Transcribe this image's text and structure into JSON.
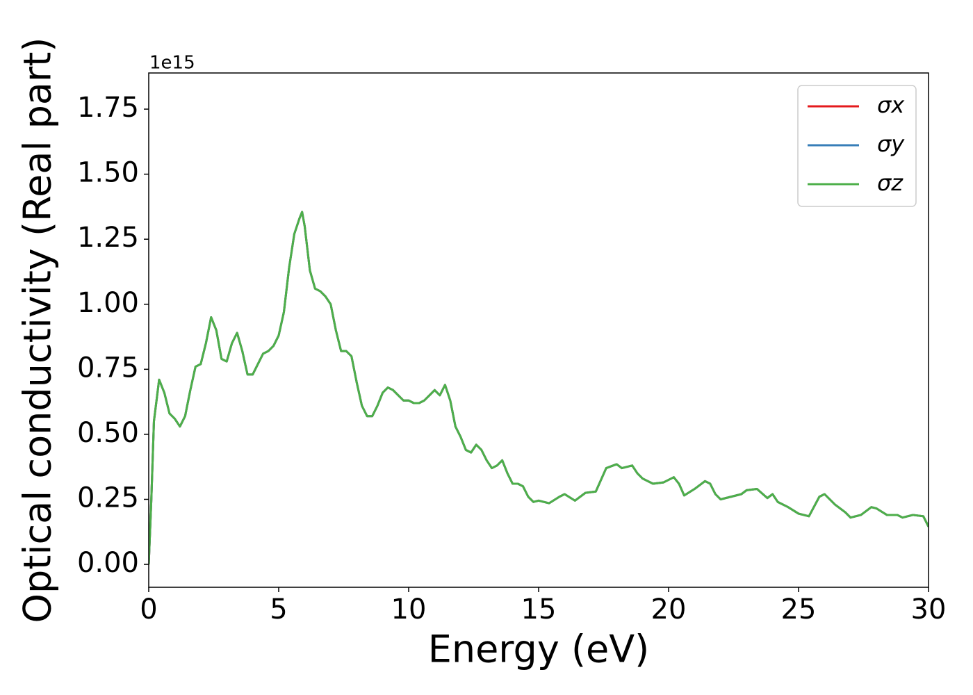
{
  "chart_data": {
    "type": "line",
    "xlabel": "Energy (eV)",
    "ylabel": "Optical conductivity (Real part)",
    "y_offset_text": "1e15",
    "x": [
      0,
      0.1,
      0.2,
      0.4,
      0.6,
      0.8,
      1.0,
      1.2,
      1.4,
      1.6,
      1.8,
      2.0,
      2.2,
      2.4,
      2.6,
      2.8,
      3.0,
      3.2,
      3.4,
      3.6,
      3.8,
      4.0,
      4.2,
      4.4,
      4.6,
      4.8,
      5.0,
      5.2,
      5.4,
      5.6,
      5.8,
      5.9,
      6.0,
      6.2,
      6.4,
      6.6,
      6.8,
      7.0,
      7.2,
      7.4,
      7.6,
      7.8,
      8.0,
      8.2,
      8.4,
      8.6,
      8.8,
      9.0,
      9.2,
      9.4,
      9.6,
      9.8,
      10.0,
      10.2,
      10.4,
      10.6,
      10.8,
      11.0,
      11.2,
      11.4,
      11.6,
      11.8,
      12.0,
      12.2,
      12.4,
      12.6,
      12.8,
      13.0,
      13.2,
      13.4,
      13.6,
      13.8,
      14.0,
      14.2,
      14.4,
      14.6,
      14.8,
      15.0,
      15.4,
      15.8,
      16.0,
      16.4,
      16.8,
      17.2,
      17.6,
      18.0,
      18.2,
      18.6,
      18.8,
      19.0,
      19.4,
      19.8,
      20.2,
      20.4,
      20.6,
      21.0,
      21.4,
      21.6,
      21.8,
      22.0,
      22.4,
      22.8,
      23.0,
      23.4,
      23.8,
      24.0,
      24.2,
      24.6,
      25.0,
      25.4,
      25.8,
      26.0,
      26.4,
      26.8,
      27.0,
      27.4,
      27.8,
      28.0,
      28.4,
      28.8,
      29.0,
      29.4,
      29.8,
      30.0
    ],
    "series": [
      {
        "name": "σx",
        "color": "#e41a1c",
        "values": [
          0,
          0.25,
          0.55,
          0.71,
          0.66,
          0.58,
          0.56,
          0.53,
          0.57,
          0.67,
          0.76,
          0.77,
          0.85,
          0.95,
          0.9,
          0.79,
          0.78,
          0.85,
          0.89,
          0.82,
          0.73,
          0.73,
          0.77,
          0.81,
          0.82,
          0.84,
          0.88,
          0.97,
          1.14,
          1.27,
          1.33,
          1.355,
          1.3,
          1.13,
          1.06,
          1.05,
          1.03,
          1.0,
          0.9,
          0.82,
          0.82,
          0.8,
          0.7,
          0.61,
          0.57,
          0.57,
          0.61,
          0.66,
          0.68,
          0.67,
          0.65,
          0.63,
          0.63,
          0.62,
          0.62,
          0.63,
          0.65,
          0.67,
          0.65,
          0.69,
          0.63,
          0.53,
          0.49,
          0.44,
          0.43,
          0.46,
          0.44,
          0.4,
          0.37,
          0.38,
          0.4,
          0.35,
          0.31,
          0.31,
          0.3,
          0.26,
          0.24,
          0.245,
          0.235,
          0.26,
          0.27,
          0.245,
          0.275,
          0.28,
          0.37,
          0.385,
          0.37,
          0.38,
          0.35,
          0.33,
          0.31,
          0.315,
          0.335,
          0.31,
          0.265,
          0.29,
          0.32,
          0.31,
          0.27,
          0.25,
          0.26,
          0.27,
          0.285,
          0.29,
          0.255,
          0.27,
          0.24,
          0.22,
          0.195,
          0.185,
          0.26,
          0.27,
          0.23,
          0.2,
          0.18,
          0.19,
          0.22,
          0.215,
          0.19,
          0.19,
          0.18,
          0.19,
          0.185,
          0.145
        ]
      },
      {
        "name": "σy",
        "color": "#377eb8",
        "values": [
          0,
          0.25,
          0.55,
          0.71,
          0.66,
          0.58,
          0.56,
          0.53,
          0.57,
          0.67,
          0.76,
          0.77,
          0.85,
          0.95,
          0.9,
          0.79,
          0.78,
          0.85,
          0.89,
          0.82,
          0.73,
          0.73,
          0.77,
          0.81,
          0.82,
          0.84,
          0.88,
          0.97,
          1.14,
          1.27,
          1.33,
          1.355,
          1.3,
          1.13,
          1.06,
          1.05,
          1.03,
          1.0,
          0.9,
          0.82,
          0.82,
          0.8,
          0.7,
          0.61,
          0.57,
          0.57,
          0.61,
          0.66,
          0.68,
          0.67,
          0.65,
          0.63,
          0.63,
          0.62,
          0.62,
          0.63,
          0.65,
          0.67,
          0.65,
          0.69,
          0.63,
          0.53,
          0.49,
          0.44,
          0.43,
          0.46,
          0.44,
          0.4,
          0.37,
          0.38,
          0.4,
          0.35,
          0.31,
          0.31,
          0.3,
          0.26,
          0.24,
          0.245,
          0.235,
          0.26,
          0.27,
          0.245,
          0.275,
          0.28,
          0.37,
          0.385,
          0.37,
          0.38,
          0.35,
          0.33,
          0.31,
          0.315,
          0.335,
          0.31,
          0.265,
          0.29,
          0.32,
          0.31,
          0.27,
          0.25,
          0.26,
          0.27,
          0.285,
          0.29,
          0.255,
          0.27,
          0.24,
          0.22,
          0.195,
          0.185,
          0.26,
          0.27,
          0.23,
          0.2,
          0.18,
          0.19,
          0.22,
          0.215,
          0.19,
          0.19,
          0.18,
          0.19,
          0.185,
          0.145
        ]
      },
      {
        "name": "σz",
        "color": "#4daf4a",
        "values": [
          0,
          0.25,
          0.55,
          0.71,
          0.66,
          0.58,
          0.56,
          0.53,
          0.57,
          0.67,
          0.76,
          0.77,
          0.85,
          0.95,
          0.9,
          0.79,
          0.78,
          0.85,
          0.89,
          0.82,
          0.73,
          0.73,
          0.77,
          0.81,
          0.82,
          0.84,
          0.88,
          0.97,
          1.14,
          1.27,
          1.33,
          1.355,
          1.3,
          1.13,
          1.06,
          1.05,
          1.03,
          1.0,
          0.9,
          0.82,
          0.82,
          0.8,
          0.7,
          0.61,
          0.57,
          0.57,
          0.61,
          0.66,
          0.68,
          0.67,
          0.65,
          0.63,
          0.63,
          0.62,
          0.62,
          0.63,
          0.65,
          0.67,
          0.65,
          0.69,
          0.63,
          0.53,
          0.49,
          0.44,
          0.43,
          0.46,
          0.44,
          0.4,
          0.37,
          0.38,
          0.4,
          0.35,
          0.31,
          0.31,
          0.3,
          0.26,
          0.24,
          0.245,
          0.235,
          0.26,
          0.27,
          0.245,
          0.275,
          0.28,
          0.37,
          0.385,
          0.37,
          0.38,
          0.35,
          0.33,
          0.31,
          0.315,
          0.335,
          0.31,
          0.265,
          0.29,
          0.32,
          0.31,
          0.27,
          0.25,
          0.26,
          0.27,
          0.285,
          0.29,
          0.255,
          0.27,
          0.24,
          0.22,
          0.195,
          0.185,
          0.26,
          0.27,
          0.23,
          0.2,
          0.18,
          0.19,
          0.22,
          0.215,
          0.19,
          0.19,
          0.18,
          0.19,
          0.185,
          0.145
        ]
      }
    ],
    "xlim": [
      0,
      30
    ],
    "xticks": [
      0,
      5,
      10,
      15,
      20,
      25,
      30
    ],
    "ylim": [
      -0.088,
      1.889
    ],
    "yticks": [
      {
        "value": 0,
        "label": "0.00"
      },
      0.25,
      {
        "value": 0.5,
        "label": "0.50"
      },
      0.75,
      {
        "value": 1,
        "label": "1.00"
      },
      1.25,
      {
        "value": 1.5,
        "label": "1.50"
      },
      1.75
    ],
    "grid": false,
    "legend": "upper right"
  }
}
